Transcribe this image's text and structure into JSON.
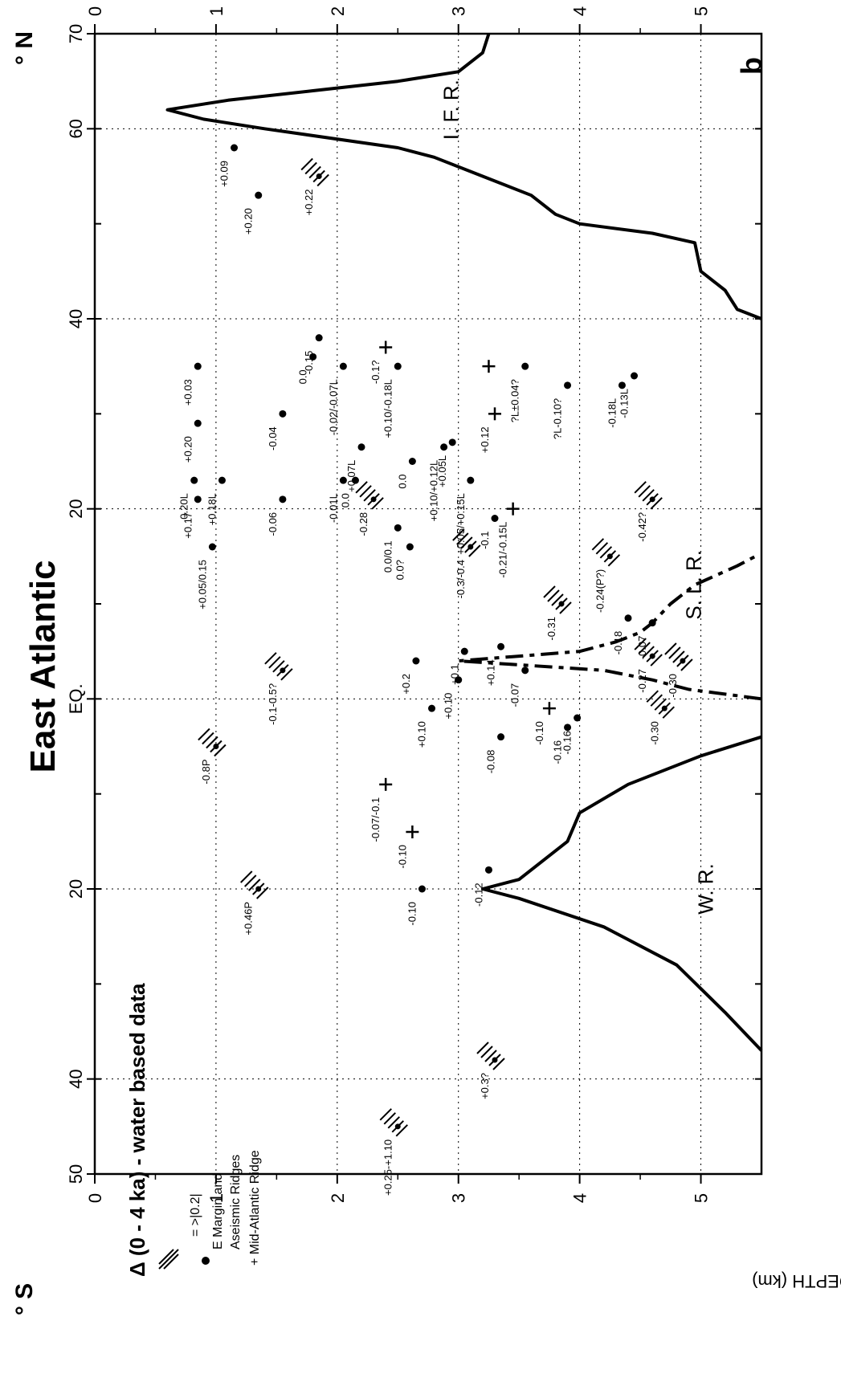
{
  "chart_data": {
    "type": "scatter",
    "title": "East Atlantic",
    "subtitle": "Δ (0 - 4 ka) - water based data",
    "panel_label": "b",
    "ylabel": "WATER DEPTH (km)",
    "x_axis": {
      "ticks": [
        {
          "lat": -50,
          "label": "50"
        },
        {
          "lat": -40,
          "label": "40"
        },
        {
          "lat": -20,
          "label": "20"
        },
        {
          "lat": 0,
          "label": "EQ."
        },
        {
          "lat": 20,
          "label": "20"
        },
        {
          "lat": 40,
          "label": "40"
        },
        {
          "lat": 60,
          "label": "60"
        },
        {
          "lat": 70,
          "label": "70"
        }
      ],
      "south_label": "° S",
      "north_label": "° N",
      "range": [
        -50,
        70
      ]
    },
    "y_axis": {
      "ticks": [
        "0",
        "1",
        "2",
        "3",
        "4",
        "5"
      ],
      "range": [
        0,
        5.5
      ],
      "inverted": true
    },
    "grid": true,
    "legend": {
      "hatch_label": "= >|0.2|",
      "dot_label_1": "E Margin and",
      "dot_label_2": "Aseismic Ridges",
      "cross_label": "+ Mid-Atlantic Ridge"
    },
    "ridge_labels": [
      {
        "text": "W. R.",
        "lat": -20,
        "depth": 5.1
      },
      {
        "text": "S. L. R.",
        "lat": 12,
        "depth": 5.0
      },
      {
        "text": "I. F. R.",
        "lat": 62,
        "depth": 3.0
      }
    ],
    "series": [
      {
        "name": "E Margin and Aseismic Ridges",
        "marker": "dot",
        "points": [
          {
            "lat": -18,
            "depth": 3.25,
            "label": "-0.12"
          },
          {
            "lat": -20,
            "depth": 2.7,
            "label": "-0.10"
          },
          {
            "lat": -4,
            "depth": 3.35,
            "label": "-0.08"
          },
          {
            "lat": -1,
            "depth": 2.78,
            "label": "+0.10"
          },
          {
            "lat": -3,
            "depth": 3.9,
            "label": "-0.16"
          },
          {
            "lat": -2,
            "depth": 3.98,
            "label": "-0.16"
          },
          {
            "lat": 2,
            "depth": 3.0,
            "label": "+0.10"
          },
          {
            "lat": 3,
            "depth": 3.55,
            "label": "-0.07"
          },
          {
            "lat": 4,
            "depth": 2.65,
            "label": "+0.2"
          },
          {
            "lat": 5,
            "depth": 3.05,
            "label": "+0.1"
          },
          {
            "lat": 5.5,
            "depth": 3.35,
            "label": "+0.14"
          },
          {
            "lat": 8,
            "depth": 4.6,
            "label": "-0.07"
          },
          {
            "lat": 8.5,
            "depth": 4.4,
            "label": "-0.18"
          },
          {
            "lat": 16,
            "depth": 0.97,
            "label": "+0.05/0.15"
          },
          {
            "lat": 16,
            "depth": 2.6,
            "label": "0.0?"
          },
          {
            "lat": 18,
            "depth": 2.5,
            "label": "0.0/0.1"
          },
          {
            "lat": 19,
            "depth": 3.3,
            "label": "-0.1"
          },
          {
            "lat": 21,
            "depth": 0.85,
            "label": "+0.17"
          },
          {
            "lat": 21,
            "depth": 1.55,
            "label": "-0.06"
          },
          {
            "lat": 23,
            "depth": 0.82,
            "label": "0.20L"
          },
          {
            "lat": 23,
            "depth": 1.05,
            "label": "+0.18L"
          },
          {
            "lat": 23,
            "depth": 2.05,
            "label": "-0.01L"
          },
          {
            "lat": 23,
            "depth": 2.15,
            "label": "0.0"
          },
          {
            "lat": 23,
            "depth": 3.1,
            "label": "+0.05/+0.15L"
          },
          {
            "lat": 25,
            "depth": 2.62,
            "label": "0.0"
          },
          {
            "lat": 26.5,
            "depth": 2.2,
            "label": "+0.07L"
          },
          {
            "lat": 26.5,
            "depth": 2.88,
            "label": "+0.10/+0.12L"
          },
          {
            "lat": 27,
            "depth": 2.95,
            "label": "+0.05L"
          },
          {
            "lat": 29,
            "depth": 0.85,
            "label": "+0.20"
          },
          {
            "lat": 30,
            "depth": 1.55,
            "label": "-0.04"
          },
          {
            "lat": 33,
            "depth": 3.9,
            "label": "?L-0.10?"
          },
          {
            "lat": 34,
            "depth": 4.45,
            "label": "-0.13L"
          },
          {
            "lat": 35,
            "depth": 0.85,
            "label": "+0.03"
          },
          {
            "lat": 35,
            "depth": 2.05,
            "label": "-0.02/-0.07L"
          },
          {
            "lat": 35,
            "depth": 2.5,
            "label": "+0.10/-0.18L"
          },
          {
            "lat": 35,
            "depth": 3.55,
            "label": "?L±0.04?"
          },
          {
            "lat": 33,
            "depth": 4.35,
            "label": "-0.18L"
          },
          {
            "lat": 36,
            "depth": 1.8,
            "label": "0.0"
          },
          {
            "lat": 38,
            "depth": 1.85,
            "label": "-0.15"
          },
          {
            "lat": 53,
            "depth": 1.35,
            "label": "+0.20"
          },
          {
            "lat": 58,
            "depth": 1.15,
            "label": "+0.09"
          }
        ]
      },
      {
        "name": "Mid-Atlantic Ridge",
        "marker": "cross",
        "points": [
          {
            "lat": -9,
            "depth": 2.4,
            "label": "-0.07/-0.1"
          },
          {
            "lat": -14,
            "depth": 2.62,
            "label": "-0.10"
          },
          {
            "lat": -1,
            "depth": 3.75,
            "label": "-0.10"
          },
          {
            "lat": 20,
            "depth": 3.45,
            "label": "-0.21/-0.15L"
          },
          {
            "lat": 30,
            "depth": 3.3,
            "label": "+0.12"
          },
          {
            "lat": 35,
            "depth": 3.25,
            "label": ""
          },
          {
            "lat": 37,
            "depth": 2.4,
            "label": "-0.1?"
          }
        ]
      },
      {
        "name": "= >|0.2|",
        "marker": "hatch",
        "points": [
          {
            "lat": -45,
            "depth": 2.5,
            "label": "+0.25-+1.10"
          },
          {
            "lat": -38,
            "depth": 3.3,
            "label": "+0.3?"
          },
          {
            "lat": -20,
            "depth": 1.35,
            "label": "+0.46P"
          },
          {
            "lat": -5,
            "depth": 1.0,
            "label": "-0.8P"
          },
          {
            "lat": 3,
            "depth": 1.55,
            "label": "-0.1-0.5?"
          },
          {
            "lat": -1,
            "depth": 4.7,
            "label": "-0.30"
          },
          {
            "lat": 4,
            "depth": 4.85,
            "label": "-0.30"
          },
          {
            "lat": 4.5,
            "depth": 4.6,
            "label": "-0.27"
          },
          {
            "lat": 10,
            "depth": 3.85,
            "label": "-0.31"
          },
          {
            "lat": 16,
            "depth": 3.1,
            "label": "-0.3/-0.4"
          },
          {
            "lat": 15,
            "depth": 4.25,
            "label": "-0.24(P?)"
          },
          {
            "lat": 21,
            "depth": 2.3,
            "label": "-0.28"
          },
          {
            "lat": 21,
            "depth": 4.6,
            "label": "-0.42?"
          },
          {
            "lat": 55,
            "depth": 1.85,
            "label": "+0.22"
          }
        ]
      }
    ],
    "ridge_profiles": [
      {
        "name": "W. R.",
        "style": "solid",
        "points": [
          [
            -37,
            5.5
          ],
          [
            -33,
            5.2
          ],
          [
            -28,
            4.8
          ],
          [
            -24,
            4.2
          ],
          [
            -21,
            3.5
          ],
          [
            -20,
            3.2
          ],
          [
            -19,
            3.5
          ],
          [
            -15,
            3.9
          ],
          [
            -12,
            4.0
          ],
          [
            -9,
            4.4
          ],
          [
            -6,
            5.0
          ],
          [
            -4,
            5.5
          ]
        ]
      },
      {
        "name": "S. L. R.",
        "style": "dashed",
        "points": [
          [
            0,
            5.5
          ],
          [
            1,
            4.9
          ],
          [
            2,
            4.6
          ],
          [
            3,
            4.2
          ],
          [
            4,
            3.0
          ],
          [
            5,
            4.0
          ],
          [
            6,
            4.3
          ],
          [
            7,
            4.5
          ],
          [
            8,
            4.6
          ],
          [
            10,
            4.75
          ],
          [
            12,
            4.95
          ],
          [
            14,
            5.3
          ],
          [
            15,
            5.45
          ]
        ]
      },
      {
        "name": "I. F. R.",
        "style": "solid",
        "points": [
          [
            40,
            5.5
          ],
          [
            41,
            5.3
          ],
          [
            43,
            5.2
          ],
          [
            45,
            5.0
          ],
          [
            48,
            4.95
          ],
          [
            49,
            4.6
          ],
          [
            50,
            4.0
          ],
          [
            51,
            3.8
          ],
          [
            53,
            3.6
          ],
          [
            55,
            3.2
          ],
          [
            57,
            2.8
          ],
          [
            58,
            2.5
          ],
          [
            60,
            1.4
          ],
          [
            61,
            0.9
          ],
          [
            62,
            0.6
          ],
          [
            63,
            1.1
          ],
          [
            64,
            1.8
          ],
          [
            65,
            2.5
          ],
          [
            66,
            3.0
          ],
          [
            68,
            3.2
          ],
          [
            70,
            3.25
          ]
        ]
      }
    ]
  }
}
